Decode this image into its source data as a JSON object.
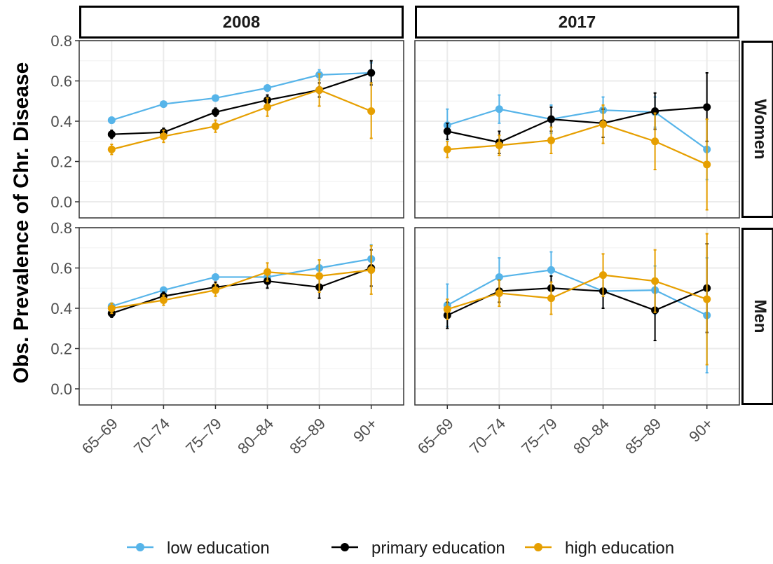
{
  "chart_data": {
    "type": "line",
    "ylabel": "Obs. Prevalence of Chr. Disease",
    "xlabel": "",
    "categories": [
      "65–69",
      "70–74",
      "75–79",
      "80–84",
      "85–89",
      "90+"
    ],
    "ylim": [
      -0.08,
      0.8
    ],
    "yticks": [
      0.0,
      0.2,
      0.4,
      0.6,
      0.8
    ],
    "ytick_labels": [
      "0.0",
      "0.2",
      "0.4",
      "0.6",
      "0.8"
    ],
    "grid": true,
    "legend_position": "bottom",
    "columns": [
      "2008",
      "2017"
    ],
    "rows": [
      "Women",
      "Men"
    ],
    "series_meta": [
      {
        "key": "low",
        "name": "low education",
        "color": "#56b4e9"
      },
      {
        "key": "primary",
        "name": "primary education",
        "color": "#000000"
      },
      {
        "key": "high",
        "name": "high education",
        "color": "#e69f00"
      }
    ],
    "panels": [
      {
        "column": "2008",
        "row": "Women",
        "series": [
          {
            "key": "low",
            "values": [
              0.405,
              0.485,
              0.515,
              0.565,
              0.63,
              0.64
            ],
            "lower": [
              0.39,
              0.475,
              0.505,
              0.55,
              0.605,
              0.59
            ],
            "upper": [
              0.42,
              0.495,
              0.525,
              0.58,
              0.655,
              0.69
            ]
          },
          {
            "key": "primary",
            "values": [
              0.335,
              0.345,
              0.445,
              0.505,
              0.555,
              0.64
            ],
            "lower": [
              0.315,
              0.325,
              0.425,
              0.48,
              0.52,
              0.58
            ],
            "upper": [
              0.355,
              0.365,
              0.465,
              0.53,
              0.59,
              0.7
            ]
          },
          {
            "key": "high",
            "values": [
              0.26,
              0.325,
              0.375,
              0.47,
              0.555,
              0.45
            ],
            "lower": [
              0.235,
              0.295,
              0.345,
              0.425,
              0.475,
              0.315
            ],
            "upper": [
              0.285,
              0.355,
              0.405,
              0.515,
              0.635,
              0.59
            ]
          }
        ]
      },
      {
        "column": "2017",
        "row": "Women",
        "series": [
          {
            "key": "low",
            "values": [
              0.38,
              0.46,
              0.41,
              0.455,
              0.445,
              0.26
            ],
            "lower": [
              0.3,
              0.39,
              0.34,
              0.39,
              0.37,
              0.11
            ],
            "upper": [
              0.46,
              0.53,
              0.48,
              0.52,
              0.52,
              0.41
            ]
          },
          {
            "key": "primary",
            "values": [
              0.35,
              0.295,
              0.41,
              0.39,
              0.45,
              0.47
            ],
            "lower": [
              0.31,
              0.24,
              0.35,
              0.32,
              0.36,
              0.3
            ],
            "upper": [
              0.39,
              0.35,
              0.47,
              0.46,
              0.54,
              0.64
            ]
          },
          {
            "key": "high",
            "values": [
              0.26,
              0.28,
              0.305,
              0.385,
              0.3,
              0.185
            ],
            "lower": [
              0.22,
              0.23,
              0.24,
              0.29,
              0.16,
              -0.04
            ],
            "upper": [
              0.3,
              0.33,
              0.37,
              0.48,
              0.44,
              0.41
            ]
          }
        ]
      },
      {
        "column": "2008",
        "row": "Men",
        "series": [
          {
            "key": "low",
            "values": [
              0.41,
              0.49,
              0.555,
              0.555,
              0.6,
              0.645
            ],
            "lower": [
              0.395,
              0.475,
              0.54,
              0.535,
              0.56,
              0.575
            ],
            "upper": [
              0.425,
              0.505,
              0.57,
              0.575,
              0.64,
              0.715
            ]
          },
          {
            "key": "primary",
            "values": [
              0.375,
              0.46,
              0.505,
              0.535,
              0.505,
              0.6
            ],
            "lower": [
              0.355,
              0.44,
              0.48,
              0.5,
              0.45,
              0.51
            ],
            "upper": [
              0.395,
              0.48,
              0.53,
              0.57,
              0.56,
              0.69
            ]
          },
          {
            "key": "high",
            "values": [
              0.4,
              0.44,
              0.49,
              0.58,
              0.56,
              0.59
            ],
            "lower": [
              0.375,
              0.415,
              0.46,
              0.535,
              0.48,
              0.47
            ],
            "upper": [
              0.425,
              0.465,
              0.52,
              0.625,
              0.64,
              0.71
            ]
          }
        ]
      },
      {
        "column": "2017",
        "row": "Men",
        "series": [
          {
            "key": "low",
            "values": [
              0.415,
              0.555,
              0.59,
              0.485,
              0.49,
              0.365
            ],
            "lower": [
              0.31,
              0.46,
              0.5,
              0.4,
              0.37,
              0.08
            ],
            "upper": [
              0.52,
              0.65,
              0.68,
              0.57,
              0.61,
              0.65
            ]
          },
          {
            "key": "primary",
            "values": [
              0.365,
              0.485,
              0.5,
              0.485,
              0.39,
              0.5
            ],
            "lower": [
              0.3,
              0.43,
              0.44,
              0.4,
              0.24,
              0.28
            ],
            "upper": [
              0.43,
              0.54,
              0.56,
              0.57,
              0.54,
              0.72
            ]
          },
          {
            "key": "high",
            "values": [
              0.395,
              0.475,
              0.45,
              0.565,
              0.535,
              0.445
            ],
            "lower": [
              0.345,
              0.41,
              0.37,
              0.46,
              0.38,
              0.12
            ],
            "upper": [
              0.445,
              0.54,
              0.53,
              0.67,
              0.69,
              0.77
            ]
          }
        ]
      }
    ]
  }
}
